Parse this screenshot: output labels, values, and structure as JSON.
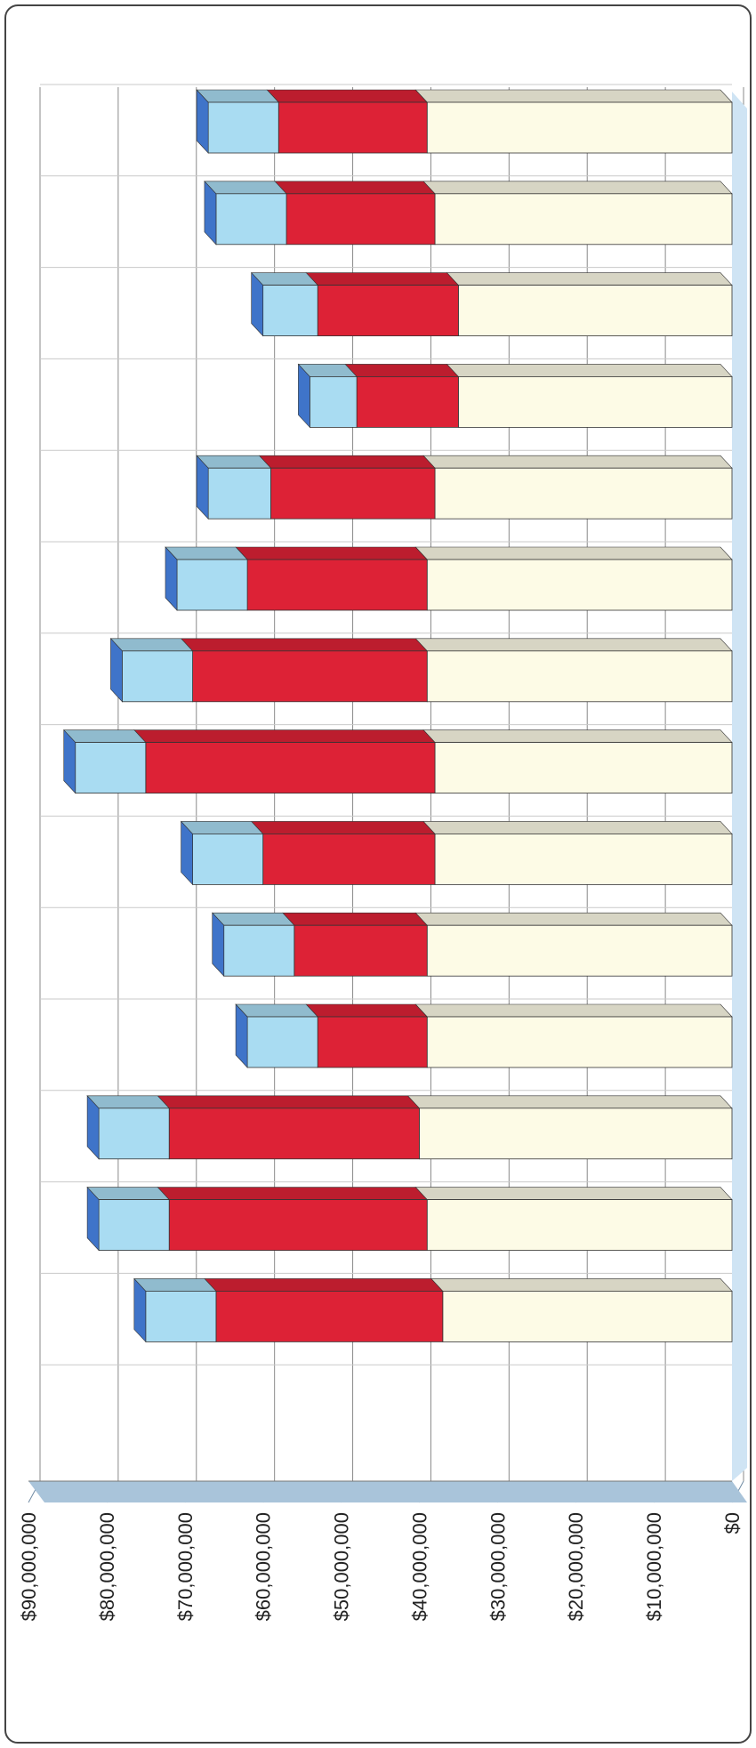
{
  "chart_data": {
    "type": "bar",
    "orientation": "stacked-3d",
    "yaxis": {
      "ticks": [
        "$0",
        "$10,000,000",
        "$20,000,000",
        "$30,000,000",
        "$40,000,000",
        "$50,000,000",
        "$60,000,000",
        "$70,000,000",
        "$80,000,000",
        "$90,000,000"
      ],
      "ylim": [
        0,
        90000000
      ]
    },
    "grid": true,
    "legend": "none",
    "series": [
      {
        "color": "#fdfbe6",
        "values": [
          39000000,
          38000000,
          35000000,
          35000000,
          38000000,
          39000000,
          39000000,
          38000000,
          38000000,
          39000000,
          39000000,
          40000000,
          39000000,
          37000000
        ]
      },
      {
        "color": "#dd2236",
        "values": [
          19000000,
          19000000,
          18000000,
          13000000,
          21000000,
          23000000,
          30000000,
          37000000,
          22000000,
          17000000,
          14000000,
          32000000,
          33000000,
          29000000
        ]
      },
      {
        "color": "#a9dcf2",
        "values": [
          9000000,
          9000000,
          7000000,
          6000000,
          8000000,
          9000000,
          9000000,
          9000000,
          9000000,
          9000000,
          9000000,
          9000000,
          9000000,
          9000000
        ]
      }
    ]
  }
}
